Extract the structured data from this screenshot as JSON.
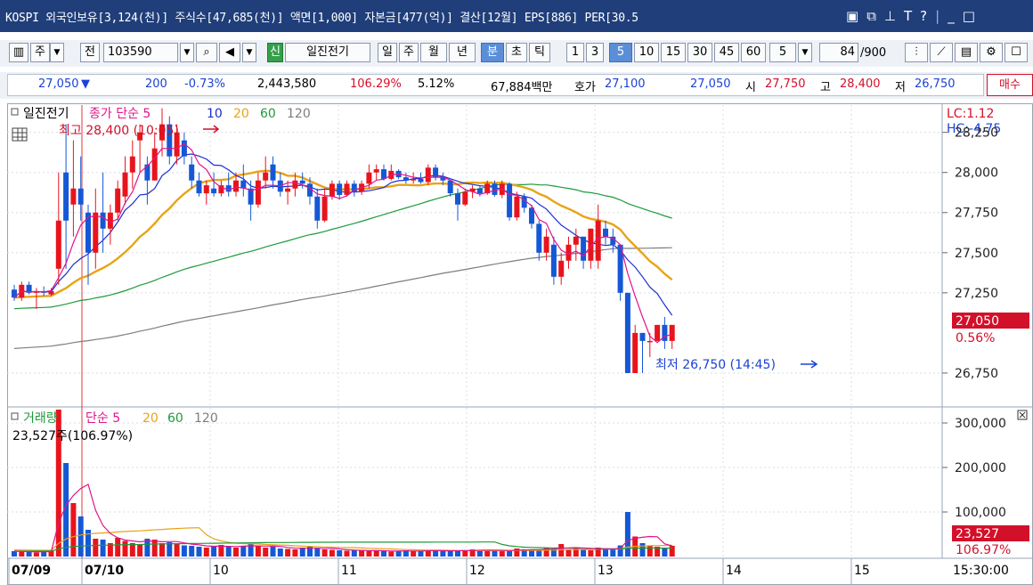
{
  "title_bar": {
    "text": "KOSPI 외국인보유[3,124(천)] 주식수[47,685(천)] 액면[1,000] 자본금[477(억)] 결산[12월] EPS[886] PER[30.5",
    "icons": [
      "restore-icon",
      "tile-icon",
      "pin-icon",
      "font-icon",
      "help-icon",
      "minimize-icon",
      "maximize-icon"
    ],
    "help_label": "?",
    "font_label": "T",
    "min_label": "_",
    "max_label": "□"
  },
  "toolbar": {
    "kind_label": "주",
    "all_label": "전",
    "code_value": "103590",
    "stock_name": "일진전기",
    "green_label": "신",
    "periods": [
      "일",
      "주",
      "월",
      "년",
      "분",
      "초",
      "틱"
    ],
    "active_period": "분",
    "intervals": [
      "1",
      "3",
      "5",
      "10",
      "15",
      "30",
      "45",
      "60"
    ],
    "active_interval": "5",
    "interval_select": "5",
    "count_value": "84",
    "count_max": "/900"
  },
  "quote": {
    "price": "27,050",
    "arrow": "▼",
    "change": "200",
    "change_pct": "-0.73%",
    "volume": "2,443,580",
    "vol_ratio": "106.29%",
    "turnover": "5.12%",
    "amount": "67,884백만",
    "bid_label": "호가",
    "bid1": "27,100",
    "bid2": "27,050",
    "open_label": "시",
    "open": "27,750",
    "high_label": "고",
    "high": "28,400",
    "low_label": "저",
    "low": "26,750",
    "buy_label": "매수"
  },
  "chart_data": [
    {
      "type": "candlestick",
      "legend": {
        "name": "일진전기",
        "close_label": "종가",
        "ma_label": "단순 5",
        "ma": [
          "10",
          "20",
          "60",
          "120"
        ]
      },
      "ma_colors": {
        "ma5": "#e0148c",
        "ma10": "#1b2fd0",
        "ma20": "#e8a317",
        "ma60": "#1e9a3a",
        "ma120": "#7d7d7d"
      },
      "y_ticks": [
        "28,250",
        "28,000",
        "27,750",
        "27,500",
        "27,250",
        "26,750"
      ],
      "ylim": [
        26550,
        28420
      ],
      "right_labels": {
        "lc": "LC:1.12",
        "hc": "HC:-4.75",
        "current": "27,050",
        "current_pct": "0.56%"
      },
      "annotations": {
        "high": "최고 28,400 (10:05)",
        "low": "최저 26,750 (14:45)"
      },
      "candles": [
        [
          27270,
          27300,
          27200,
          27220
        ],
        [
          27220,
          27320,
          27200,
          27300
        ],
        [
          27300,
          27320,
          27240,
          27250
        ],
        [
          27250,
          27280,
          27150,
          27260
        ],
        [
          27260,
          27290,
          27230,
          27250
        ],
        [
          27240,
          27280,
          27230,
          27260
        ],
        [
          27400,
          28000,
          27300,
          27700
        ],
        [
          28000,
          28300,
          27400,
          27700
        ],
        [
          27800,
          28200,
          27600,
          27900
        ],
        [
          27900,
          28100,
          27700,
          27800
        ],
        [
          27750,
          27800,
          27300,
          27500
        ],
        [
          27500,
          27900,
          27400,
          27750
        ],
        [
          27750,
          28000,
          27500,
          27650
        ],
        [
          27650,
          27800,
          27550,
          27750
        ],
        [
          27750,
          27950,
          27700,
          27900
        ],
        [
          27850,
          28100,
          27800,
          28000
        ],
        [
          28000,
          28200,
          27900,
          28100
        ],
        [
          28200,
          28300,
          28000,
          28250
        ],
        [
          28050,
          28100,
          27800,
          27950
        ],
        [
          27950,
          28250,
          27950,
          28150
        ],
        [
          28200,
          28400,
          28100,
          28300
        ],
        [
          28300,
          28350,
          28050,
          28100
        ],
        [
          28100,
          28300,
          28050,
          28250
        ],
        [
          28200,
          28250,
          28050,
          28100
        ],
        [
          28050,
          28100,
          27900,
          27950
        ],
        [
          27950,
          28000,
          27850,
          27870
        ],
        [
          27870,
          27950,
          27800,
          27920
        ],
        [
          27900,
          28000,
          27850,
          27870
        ],
        [
          27870,
          27950,
          27850,
          27920
        ],
        [
          27920,
          28000,
          27850,
          27880
        ],
        [
          27880,
          28000,
          27850,
          27950
        ],
        [
          27950,
          28050,
          27850,
          27900
        ],
        [
          27900,
          27950,
          27700,
          27800
        ],
        [
          27800,
          28000,
          27780,
          27950
        ],
        [
          27950,
          28100,
          27900,
          28000
        ],
        [
          28050,
          28100,
          27900,
          27950
        ],
        [
          27950,
          28000,
          27850,
          27880
        ],
        [
          27880,
          27950,
          27800,
          27900
        ],
        [
          27900,
          28000,
          27850,
          27950
        ],
        [
          27950,
          28000,
          27900,
          27930
        ],
        [
          27930,
          27970,
          27800,
          27850
        ],
        [
          27850,
          27900,
          27650,
          27700
        ],
        [
          27700,
          27900,
          27690,
          27850
        ],
        [
          27850,
          27950,
          27830,
          27930
        ],
        [
          27930,
          27950,
          27830,
          27860
        ],
        [
          27860,
          27950,
          27850,
          27930
        ],
        [
          27930,
          27950,
          27850,
          27880
        ],
        [
          27880,
          27950,
          27860,
          27930
        ],
        [
          27930,
          28050,
          27900,
          28000
        ],
        [
          28000,
          28050,
          27950,
          28020
        ],
        [
          28020,
          28050,
          27950,
          27960
        ],
        [
          27960,
          28050,
          27950,
          28010
        ],
        [
          28010,
          28020,
          27960,
          27970
        ],
        [
          27970,
          28000,
          27930,
          27950
        ],
        [
          27950,
          28000,
          27930,
          27960
        ],
        [
          27960,
          28000,
          27930,
          27940
        ],
        [
          27940,
          28050,
          27920,
          28030
        ],
        [
          28030,
          28050,
          27950,
          27970
        ],
        [
          27970,
          28000,
          27920,
          27950
        ],
        [
          27950,
          27950,
          27850,
          27870
        ],
        [
          27870,
          27900,
          27700,
          27800
        ],
        [
          27800,
          27900,
          27790,
          27880
        ],
        [
          27880,
          27920,
          27840,
          27900
        ],
        [
          27900,
          27920,
          27850,
          27870
        ],
        [
          27870,
          27950,
          27860,
          27930
        ],
        [
          27930,
          27950,
          27850,
          27860
        ],
        [
          27860,
          27950,
          27840,
          27930
        ],
        [
          27930,
          27940,
          27700,
          27720
        ],
        [
          27720,
          27880,
          27700,
          27850
        ],
        [
          27850,
          27870,
          27750,
          27780
        ],
        [
          27780,
          27800,
          27650,
          27680
        ],
        [
          27680,
          27700,
          27450,
          27500
        ],
        [
          27500,
          27650,
          27450,
          27600
        ],
        [
          27550,
          27600,
          27300,
          27350
        ],
        [
          27350,
          27500,
          27300,
          27450
        ],
        [
          27450,
          27600,
          27400,
          27550
        ],
        [
          27550,
          27650,
          27450,
          27600
        ],
        [
          27600,
          27600,
          27400,
          27450
        ],
        [
          27450,
          27650,
          27400,
          27650
        ],
        [
          27450,
          27800,
          27400,
          27700
        ],
        [
          27650,
          27700,
          27550,
          27600
        ],
        [
          27600,
          27650,
          27500,
          27550
        ],
        [
          27550,
          27550,
          27200,
          27250
        ],
        [
          27250,
          27250,
          26750,
          26750
        ],
        [
          26750,
          27050,
          26750,
          27000
        ],
        [
          27000,
          27000,
          26750,
          26950
        ],
        [
          26950,
          27000,
          26850,
          26950
        ],
        [
          26950,
          27050,
          26950,
          27050
        ],
        [
          27050,
          27100,
          26900,
          26950
        ],
        [
          26950,
          27050,
          26900,
          27050
        ]
      ]
    },
    {
      "type": "bar",
      "legend": {
        "name": "거래량",
        "ma_label": "단순 5",
        "ma": [
          "20",
          "60",
          "120"
        ]
      },
      "current_text": "23,527주(106.97%)",
      "y_ticks": [
        "300,000",
        "200,000",
        "100,000"
      ],
      "ylim": [
        0,
        330000
      ],
      "right_labels": {
        "current": "23,527",
        "current_pct": "106.97%"
      },
      "values": [
        12000,
        11000,
        10000,
        9000,
        12000,
        14000,
        330000,
        210000,
        120000,
        90000,
        60000,
        40000,
        38000,
        30000,
        42000,
        35000,
        30000,
        28000,
        40000,
        38000,
        30000,
        32000,
        28000,
        25000,
        24000,
        22000,
        20000,
        24000,
        26000,
        22000,
        20000,
        24000,
        28000,
        25000,
        20000,
        22000,
        18000,
        17000,
        16000,
        20000,
        22000,
        18000,
        16000,
        15000,
        14000,
        13000,
        14000,
        13000,
        12000,
        14000,
        12000,
        11000,
        12000,
        14000,
        13000,
        12000,
        13000,
        15000,
        12000,
        12000,
        13000,
        14000,
        16000,
        15000,
        14000,
        12000,
        13000,
        14000,
        18000,
        16000,
        15000,
        14000,
        20000,
        18000,
        28000,
        16000,
        18000,
        15000,
        14000,
        20000,
        18000,
        16000,
        25000,
        100000,
        45000,
        30000,
        25000,
        22000,
        20000,
        24000
      ]
    }
  ],
  "x_axis": {
    "labels": [
      "07/09",
      "07/10",
      "10",
      "11",
      "12",
      "13",
      "14",
      "15"
    ],
    "time_label": "15:30:00"
  }
}
